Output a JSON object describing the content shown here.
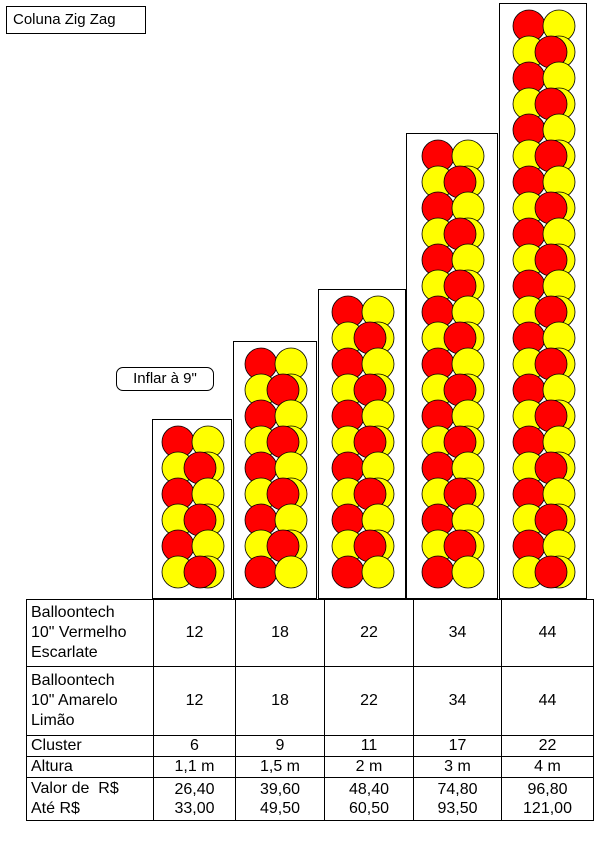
{
  "title": "Coluna Zig Zag",
  "note": "Inflar à 9\"",
  "colors": {
    "red": "#ff0000",
    "yellow": "#ffff00",
    "outline": "#000000"
  },
  "columns": [
    {
      "balloon_rows": 6
    },
    {
      "balloon_rows": 9
    },
    {
      "balloon_rows": 11
    },
    {
      "balloon_rows": 17
    },
    {
      "balloon_rows": 22
    }
  ],
  "table": {
    "rows": [
      {
        "label": [
          "Balloontech",
          "10\" Vermelho",
          "Escarlate"
        ],
        "values": [
          "12",
          "18",
          "22",
          "34",
          "44"
        ]
      },
      {
        "label": [
          "Balloontech",
          "10\" Amarelo",
          "Limão"
        ],
        "values": [
          "12",
          "18",
          "22",
          "34",
          "44"
        ]
      },
      {
        "label": [
          "Cluster"
        ],
        "values": [
          "6",
          "9",
          "11",
          "17",
          "22"
        ]
      },
      {
        "label": [
          "Altura"
        ],
        "values": [
          "1,1 m",
          "1,5 m",
          "2 m",
          "3 m",
          "4 m"
        ]
      },
      {
        "label": [
          "Valor de  R$",
          "Até R$"
        ],
        "values": [
          [
            "26,40",
            "33,00"
          ],
          [
            "39,60",
            "49,50"
          ],
          [
            "48,40",
            "60,50"
          ],
          [
            "74,80",
            "93,50"
          ],
          [
            "96,80",
            "121,00"
          ]
        ]
      }
    ]
  }
}
